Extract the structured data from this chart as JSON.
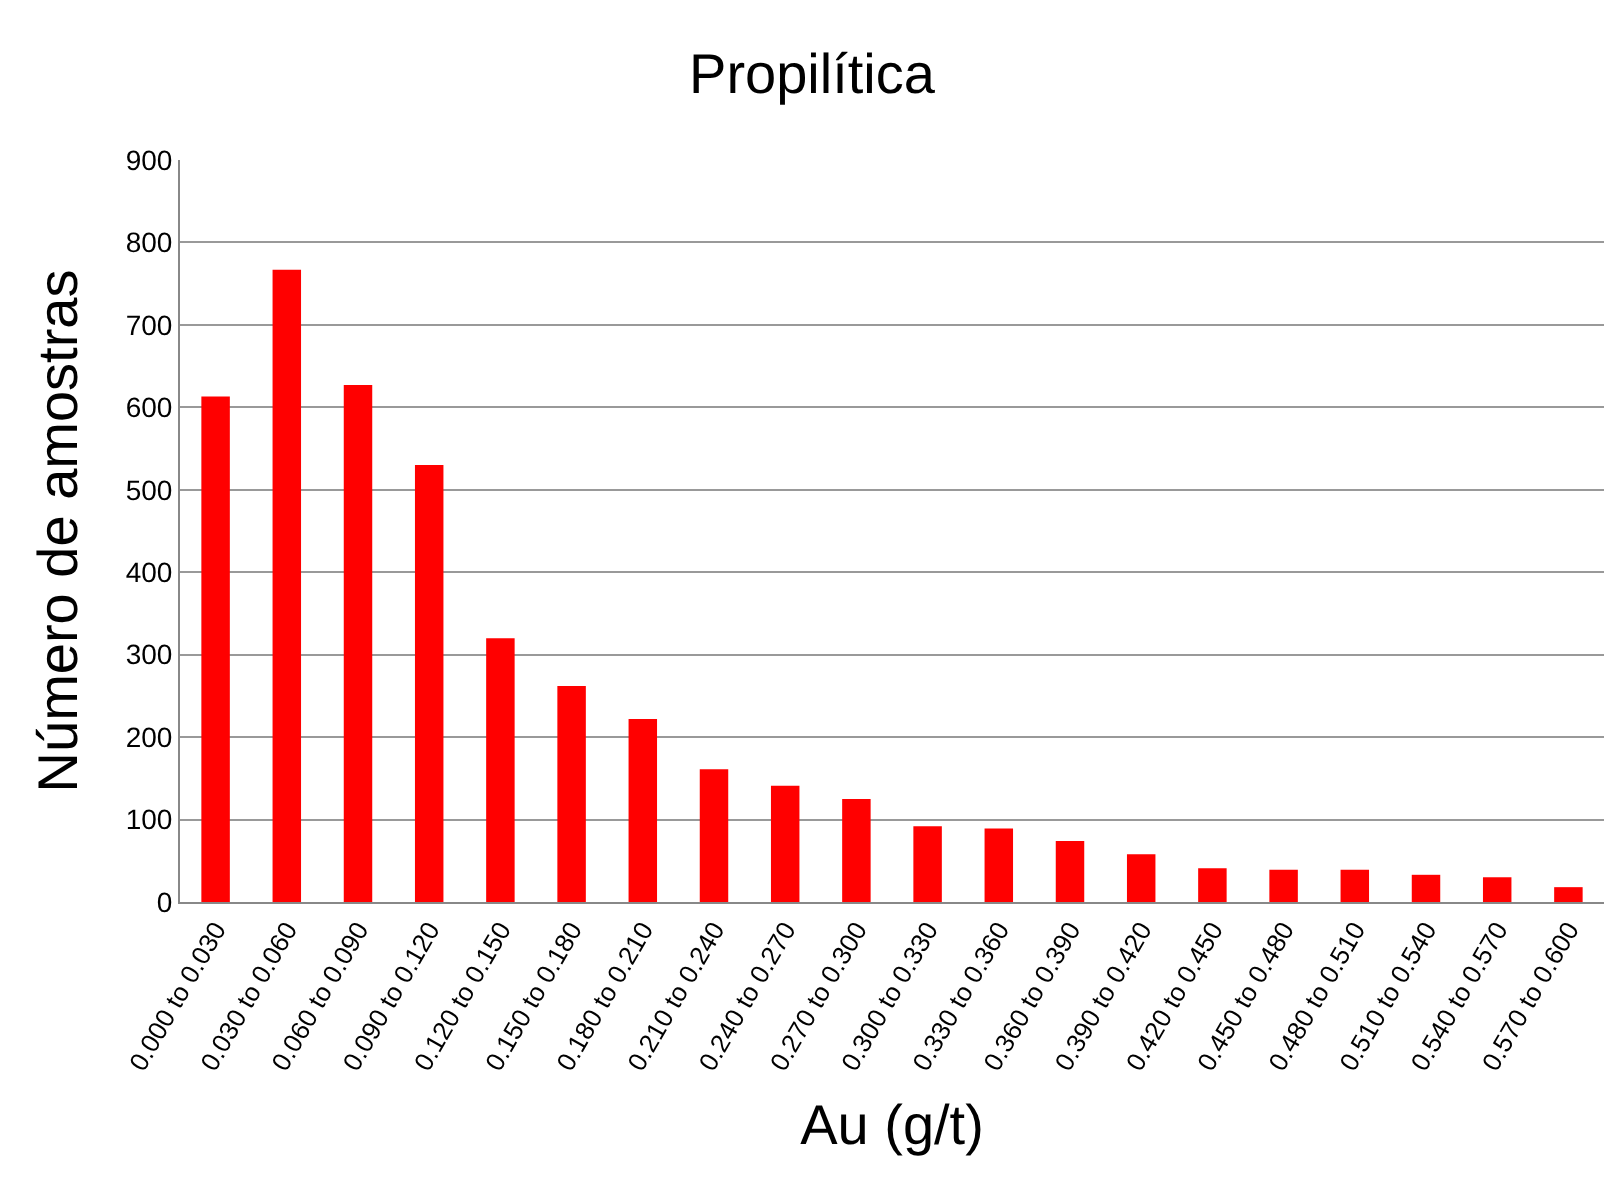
{
  "chart_data": {
    "type": "bar",
    "title": "Propilítica",
    "xlabel": "Au (g/t)",
    "ylabel": "Número de amostras",
    "categories": [
      "0.000 to 0.030",
      "0.030 to 0.060",
      "0.060 to 0.090",
      "0.090 to 0.120",
      "0.120 to 0.150",
      "0.150 to 0.180",
      "0.180 to 0.210",
      "0.210 to 0.240",
      "0.240 to 0.270",
      "0.270 to 0.300",
      "0.300 to 0.330",
      "0.330 to 0.360",
      "0.360 to 0.390",
      "0.390 to 0.420",
      "0.420 to 0.450",
      "0.450 to 0.480",
      "0.480 to 0.510",
      "0.510 to 0.540",
      "0.540 to 0.570",
      "0.570 to 0.600"
    ],
    "values": [
      613,
      767,
      627,
      530,
      320,
      262,
      222,
      161,
      141,
      125,
      92,
      89,
      74,
      58,
      41,
      39,
      39,
      33,
      30,
      18
    ],
    "color": "#ff0000",
    "ylim": [
      0,
      900
    ],
    "yticks": [
      0,
      100,
      200,
      300,
      400,
      500,
      600,
      700,
      800,
      900
    ],
    "grid": "y",
    "legend": false
  }
}
